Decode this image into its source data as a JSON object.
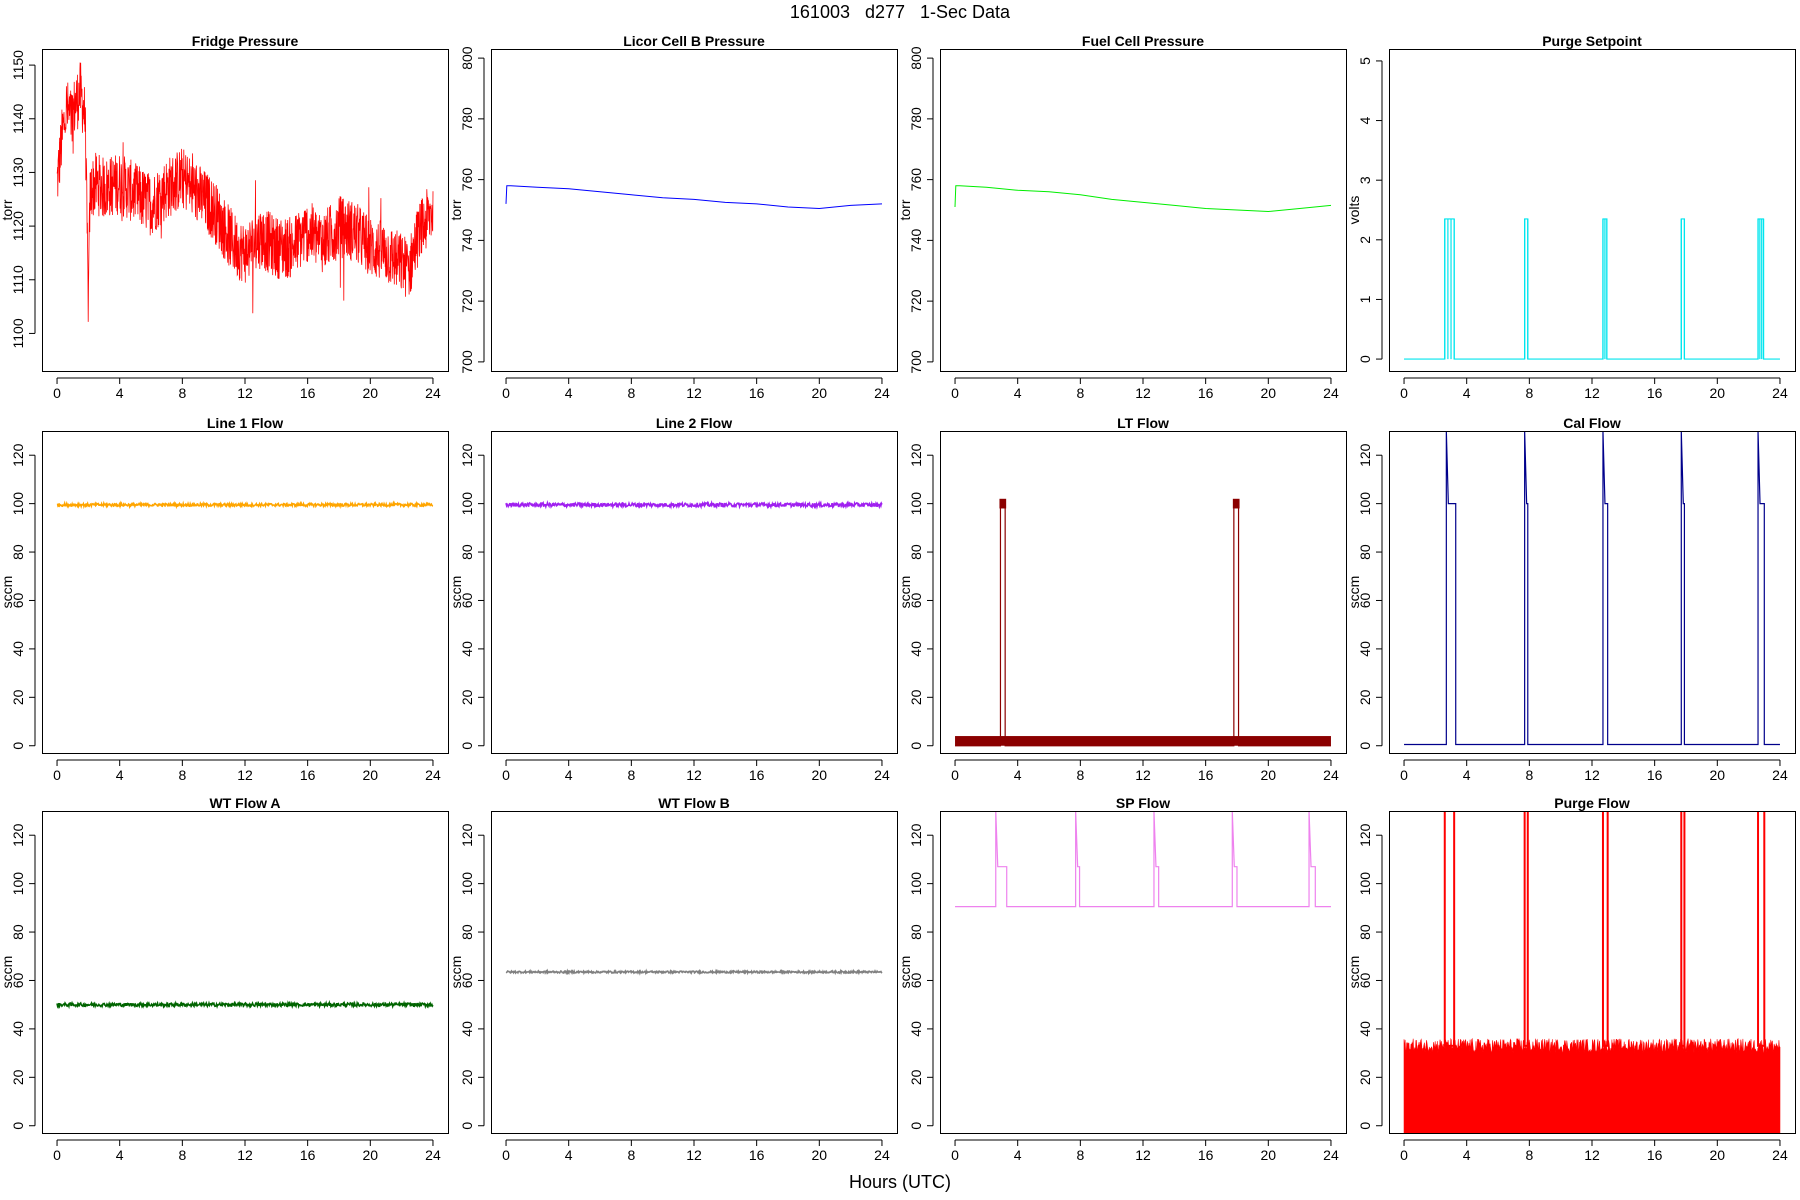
{
  "title": "161003   d277   1-Sec Data",
  "xlabel": "Hours (UTC)",
  "chart_data": [
    {
      "type": "line",
      "title": "Fridge Pressure",
      "ylabel": "torr",
      "color": "#ff0000",
      "xlim": [
        0,
        24
      ],
      "ylim": [
        1093,
        1153
      ],
      "xticks": [
        0,
        4,
        8,
        12,
        16,
        20,
        24
      ],
      "yticks": [
        1100,
        1110,
        1120,
        1130,
        1140,
        1150
      ],
      "style": "noisy",
      "noise": 9,
      "x": [
        0.0,
        0.3,
        0.6,
        0.9,
        1.2,
        1.5,
        1.8,
        2.0,
        2.1,
        2.2,
        2.5,
        3,
        4,
        5,
        6,
        7,
        7.5,
        8,
        9,
        10,
        11,
        11.5,
        12,
        13,
        14,
        15,
        16,
        17,
        18,
        19,
        20,
        21,
        22,
        22.5,
        23,
        24
      ],
      "y": [
        1128,
        1136,
        1142,
        1140,
        1143,
        1145,
        1140,
        1105,
        1125,
        1127,
        1128,
        1127,
        1128,
        1126,
        1124,
        1127,
        1128,
        1129,
        1126,
        1123,
        1118,
        1116,
        1115,
        1118,
        1116,
        1116,
        1119,
        1117,
        1120,
        1119,
        1116,
        1115,
        1113,
        1112,
        1118,
        1123
      ]
    },
    {
      "type": "line",
      "title": "Licor Cell B Pressure",
      "ylabel": "torr",
      "color": "#0000ff",
      "xlim": [
        0,
        24
      ],
      "ylim": [
        697,
        803
      ],
      "xticks": [
        0,
        4,
        8,
        12,
        16,
        20,
        24
      ],
      "yticks": [
        700,
        720,
        740,
        760,
        780,
        800
      ],
      "style": "line",
      "x": [
        0,
        0.05,
        0.3,
        2,
        4,
        6,
        8,
        10,
        12,
        14,
        16,
        18,
        20,
        22,
        24
      ],
      "y": [
        752,
        758,
        758,
        757.5,
        757,
        756,
        755,
        754,
        753.5,
        752.5,
        752,
        751,
        750.5,
        751.5,
        752
      ]
    },
    {
      "type": "line",
      "title": "Fuel Cell Pressure",
      "ylabel": "torr",
      "color": "#00ee00",
      "xlim": [
        0,
        24
      ],
      "ylim": [
        697,
        803
      ],
      "xticks": [
        0,
        4,
        8,
        12,
        16,
        20,
        24
      ],
      "yticks": [
        700,
        720,
        740,
        760,
        780,
        800
      ],
      "style": "line",
      "x": [
        0,
        0.05,
        0.3,
        2,
        4,
        6,
        8,
        10,
        12,
        14,
        16,
        18,
        20,
        22,
        24
      ],
      "y": [
        751,
        758,
        758,
        757.5,
        756.5,
        756,
        755,
        753.5,
        752.5,
        751.5,
        750.5,
        750,
        749.5,
        750.5,
        751.5
      ]
    },
    {
      "type": "line",
      "title": "Purge Setpoint",
      "ylabel": "volts",
      "color": "#00e5ee",
      "xlim": [
        0,
        24
      ],
      "ylim": [
        -0.2,
        5.2
      ],
      "xticks": [
        0,
        4,
        8,
        12,
        16,
        20,
        24
      ],
      "yticks": [
        0,
        1,
        2,
        3,
        4,
        5
      ],
      "style": "pulse",
      "baseline": 0,
      "pulses": [
        {
          "start": 2.6,
          "end": 3.2,
          "value": 2.35,
          "lines": 4
        },
        {
          "start": 7.7,
          "end": 7.9,
          "value": 2.35,
          "lines": 2
        },
        {
          "start": 12.7,
          "end": 12.95,
          "value": 2.35,
          "lines": 3
        },
        {
          "start": 17.7,
          "end": 17.9,
          "value": 2.35,
          "lines": 2
        },
        {
          "start": 22.6,
          "end": 22.95,
          "value": 2.35,
          "lines": 4
        }
      ]
    },
    {
      "type": "line",
      "title": "Line 1 Flow",
      "ylabel": "sccm",
      "color": "#ffa500",
      "xlim": [
        0,
        24
      ],
      "ylim": [
        -3,
        130
      ],
      "xticks": [
        0,
        4,
        8,
        12,
        16,
        20,
        24
      ],
      "yticks": [
        0,
        20,
        40,
        60,
        80,
        100,
        120
      ],
      "style": "band",
      "center": 99.5,
      "spread": 1.2,
      "x": [
        0,
        24
      ]
    },
    {
      "type": "line",
      "title": "Line 2 Flow",
      "ylabel": "sccm",
      "color": "#a020f0",
      "xlim": [
        0,
        24
      ],
      "ylim": [
        -3,
        130
      ],
      "xticks": [
        0,
        4,
        8,
        12,
        16,
        20,
        24
      ],
      "yticks": [
        0,
        20,
        40,
        60,
        80,
        100,
        120
      ],
      "style": "band",
      "center": 99.5,
      "spread": 1.6,
      "x": [
        0,
        24
      ]
    },
    {
      "type": "line",
      "title": "LT Flow",
      "ylabel": "sccm",
      "color": "#8b0000",
      "xlim": [
        0,
        24
      ],
      "ylim": [
        -3,
        130
      ],
      "xticks": [
        0,
        4,
        8,
        12,
        16,
        20,
        24
      ],
      "yticks": [
        0,
        20,
        40,
        60,
        80,
        100,
        120
      ],
      "style": "pulse-band",
      "baseline": 0,
      "band_top": 4,
      "pulses": [
        {
          "start": 2.9,
          "end": 3.2,
          "value": 100,
          "cap": 102
        },
        {
          "start": 17.8,
          "end": 18.1,
          "value": 100,
          "cap": 102
        }
      ]
    },
    {
      "type": "line",
      "title": "Cal Flow",
      "ylabel": "sccm",
      "color": "#00008b",
      "xlim": [
        0,
        24
      ],
      "ylim": [
        -3,
        130
      ],
      "xticks": [
        0,
        4,
        8,
        12,
        16,
        20,
        24
      ],
      "yticks": [
        0,
        20,
        40,
        60,
        80,
        100,
        120
      ],
      "style": "pulse",
      "baseline": 0.5,
      "spike": 130,
      "pulses": [
        {
          "start": 2.7,
          "end": 3.3,
          "value": 100
        },
        {
          "start": 7.7,
          "end": 7.9,
          "value": 100
        },
        {
          "start": 12.7,
          "end": 13.0,
          "value": 100
        },
        {
          "start": 17.7,
          "end": 17.9,
          "value": 100
        },
        {
          "start": 22.6,
          "end": 23.0,
          "value": 100
        }
      ]
    },
    {
      "type": "line",
      "title": "WT Flow A",
      "ylabel": "sccm",
      "color": "#006400",
      "xlim": [
        0,
        24
      ],
      "ylim": [
        -3,
        130
      ],
      "xticks": [
        0,
        4,
        8,
        12,
        16,
        20,
        24
      ],
      "yticks": [
        0,
        20,
        40,
        60,
        80,
        100,
        120
      ],
      "style": "band",
      "center": 50,
      "spread": 1.4,
      "x": [
        0,
        24
      ]
    },
    {
      "type": "line",
      "title": "WT Flow B",
      "ylabel": "sccm",
      "color": "#808080",
      "xlim": [
        0,
        24
      ],
      "ylim": [
        -3,
        130
      ],
      "xticks": [
        0,
        4,
        8,
        12,
        16,
        20,
        24
      ],
      "yticks": [
        0,
        20,
        40,
        60,
        80,
        100,
        120
      ],
      "style": "band",
      "center": 63.5,
      "spread": 0.8,
      "x": [
        0,
        24
      ]
    },
    {
      "type": "line",
      "title": "SP Flow",
      "ylabel": "sccm",
      "color": "#ee82ee",
      "xlim": [
        0,
        24
      ],
      "ylim": [
        -3,
        130
      ],
      "xticks": [
        0,
        4,
        8,
        12,
        16,
        20,
        24
      ],
      "yticks": [
        0,
        20,
        40,
        60,
        80,
        100,
        120
      ],
      "style": "pulse",
      "baseline": 90.5,
      "spike": 130,
      "pulses": [
        {
          "start": 2.6,
          "end": 3.3,
          "value": 107
        },
        {
          "start": 7.7,
          "end": 7.95,
          "value": 107
        },
        {
          "start": 12.7,
          "end": 13.0,
          "value": 107
        },
        {
          "start": 17.7,
          "end": 18.0,
          "value": 107
        },
        {
          "start": 22.6,
          "end": 23.0,
          "value": 107
        }
      ]
    },
    {
      "type": "line",
      "title": "Purge Flow",
      "ylabel": "sccm",
      "color": "#ff0000",
      "xlim": [
        0,
        24
      ],
      "ylim": [
        -3,
        130
      ],
      "xticks": [
        0,
        4,
        8,
        12,
        16,
        20,
        24
      ],
      "yticks": [
        0,
        20,
        40,
        60,
        80,
        100,
        120
      ],
      "style": "noise-fill",
      "baseline": -3,
      "band_top": 33,
      "spread": 4,
      "pulses": [
        {
          "start": 2.6,
          "end": 3.2,
          "value": 130
        },
        {
          "start": 7.7,
          "end": 7.9,
          "value": 130
        },
        {
          "start": 12.7,
          "end": 13.0,
          "value": 130
        },
        {
          "start": 17.7,
          "end": 17.9,
          "value": 130
        },
        {
          "start": 22.6,
          "end": 23.0,
          "value": 130
        }
      ]
    }
  ]
}
